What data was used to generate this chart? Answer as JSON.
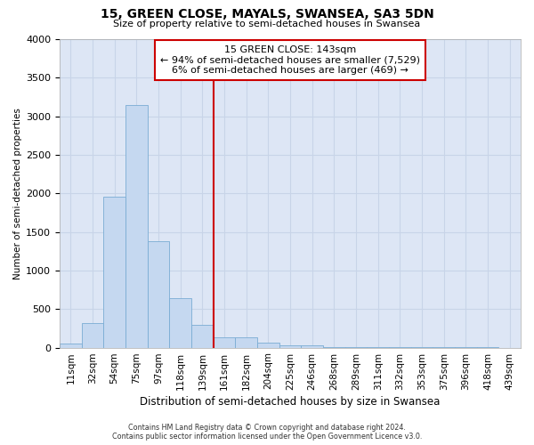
{
  "title": "15, GREEN CLOSE, MAYALS, SWANSEA, SA3 5DN",
  "subtitle": "Size of property relative to semi-detached houses in Swansea",
  "xlabel": "Distribution of semi-detached houses by size in Swansea",
  "ylabel": "Number of semi-detached properties",
  "footer_line1": "Contains HM Land Registry data © Crown copyright and database right 2024.",
  "footer_line2": "Contains public sector information licensed under the Open Government Licence v3.0.",
  "annotation_line0": "15 GREEN CLOSE: 143sqm",
  "annotation_line1": "← 94% of semi-detached houses are smaller (7,529)",
  "annotation_line2": "6% of semi-detached houses are larger (469) →",
  "bar_color": "#c5d8f0",
  "bar_edge_color": "#7aacd4",
  "vline_color": "#cc0000",
  "annotation_box_edge": "#cc0000",
  "grid_color": "#c8d4e8",
  "bg_color": "#dde6f5",
  "categories": [
    "11sqm",
    "32sqm",
    "54sqm",
    "75sqm",
    "97sqm",
    "118sqm",
    "139sqm",
    "161sqm",
    "182sqm",
    "204sqm",
    "225sqm",
    "246sqm",
    "268sqm",
    "289sqm",
    "311sqm",
    "332sqm",
    "353sqm",
    "375sqm",
    "396sqm",
    "418sqm",
    "439sqm"
  ],
  "values": [
    50,
    315,
    1960,
    3150,
    1380,
    640,
    300,
    130,
    130,
    70,
    30,
    25,
    5,
    3,
    3,
    2,
    1,
    1,
    1,
    1,
    0
  ],
  "ylim": [
    0,
    4000
  ],
  "yticks": [
    0,
    500,
    1000,
    1500,
    2000,
    2500,
    3000,
    3500,
    4000
  ],
  "vline_x": 6.5
}
